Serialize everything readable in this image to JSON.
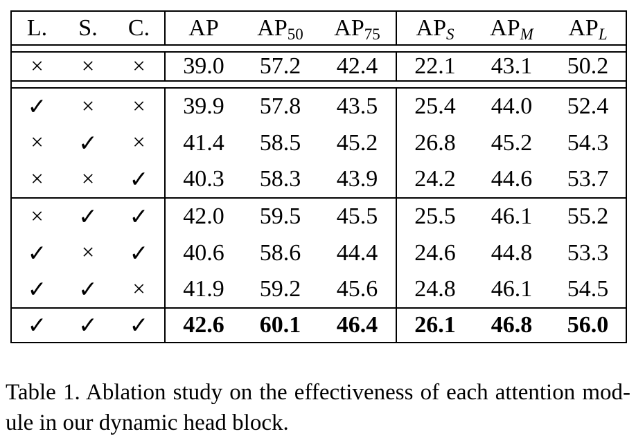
{
  "table": {
    "header": {
      "check_cols": [
        "L.",
        "S.",
        "C."
      ],
      "metric_cols": [
        {
          "main": "AP",
          "sub": ""
        },
        {
          "main": "AP",
          "sub": "50"
        },
        {
          "main": "AP",
          "sub": "75"
        },
        {
          "main": "AP",
          "sub": "S"
        },
        {
          "main": "AP",
          "sub": "M"
        },
        {
          "main": "AP",
          "sub": "L"
        }
      ]
    },
    "check_glyphs": {
      "yes": "✓",
      "no": "×"
    },
    "rows": [
      {
        "checks": [
          "no",
          "no",
          "no"
        ],
        "values": [
          "39.0",
          "57.2",
          "42.4",
          "22.1",
          "43.1",
          "50.2"
        ],
        "bold": false
      },
      {
        "checks": [
          "yes",
          "no",
          "no"
        ],
        "values": [
          "39.9",
          "57.8",
          "43.5",
          "25.4",
          "44.0",
          "52.4"
        ],
        "bold": false
      },
      {
        "checks": [
          "no",
          "yes",
          "no"
        ],
        "values": [
          "41.4",
          "58.5",
          "45.2",
          "26.8",
          "45.2",
          "54.3"
        ],
        "bold": false
      },
      {
        "checks": [
          "no",
          "no",
          "yes"
        ],
        "values": [
          "40.3",
          "58.3",
          "43.9",
          "24.2",
          "44.6",
          "53.7"
        ],
        "bold": false
      },
      {
        "checks": [
          "no",
          "yes",
          "yes"
        ],
        "values": [
          "42.0",
          "59.5",
          "45.5",
          "25.5",
          "46.1",
          "55.2"
        ],
        "bold": false
      },
      {
        "checks": [
          "yes",
          "no",
          "yes"
        ],
        "values": [
          "40.6",
          "58.6",
          "44.4",
          "24.6",
          "44.8",
          "53.3"
        ],
        "bold": false
      },
      {
        "checks": [
          "yes",
          "yes",
          "no"
        ],
        "values": [
          "41.9",
          "59.2",
          "45.6",
          "24.8",
          "46.1",
          "54.5"
        ],
        "bold": false
      },
      {
        "checks": [
          "yes",
          "yes",
          "yes"
        ],
        "values": [
          "42.6",
          "60.1",
          "46.4",
          "26.1",
          "46.8",
          "56.0"
        ],
        "bold": true
      }
    ]
  },
  "caption": {
    "line1": "Table 1. Ablation study on the effectiveness of each attention mod-",
    "line2": "ule in our dynamic head block."
  },
  "colors": {
    "text": "#000000",
    "background": "#ffffff",
    "rule": "#000000"
  }
}
